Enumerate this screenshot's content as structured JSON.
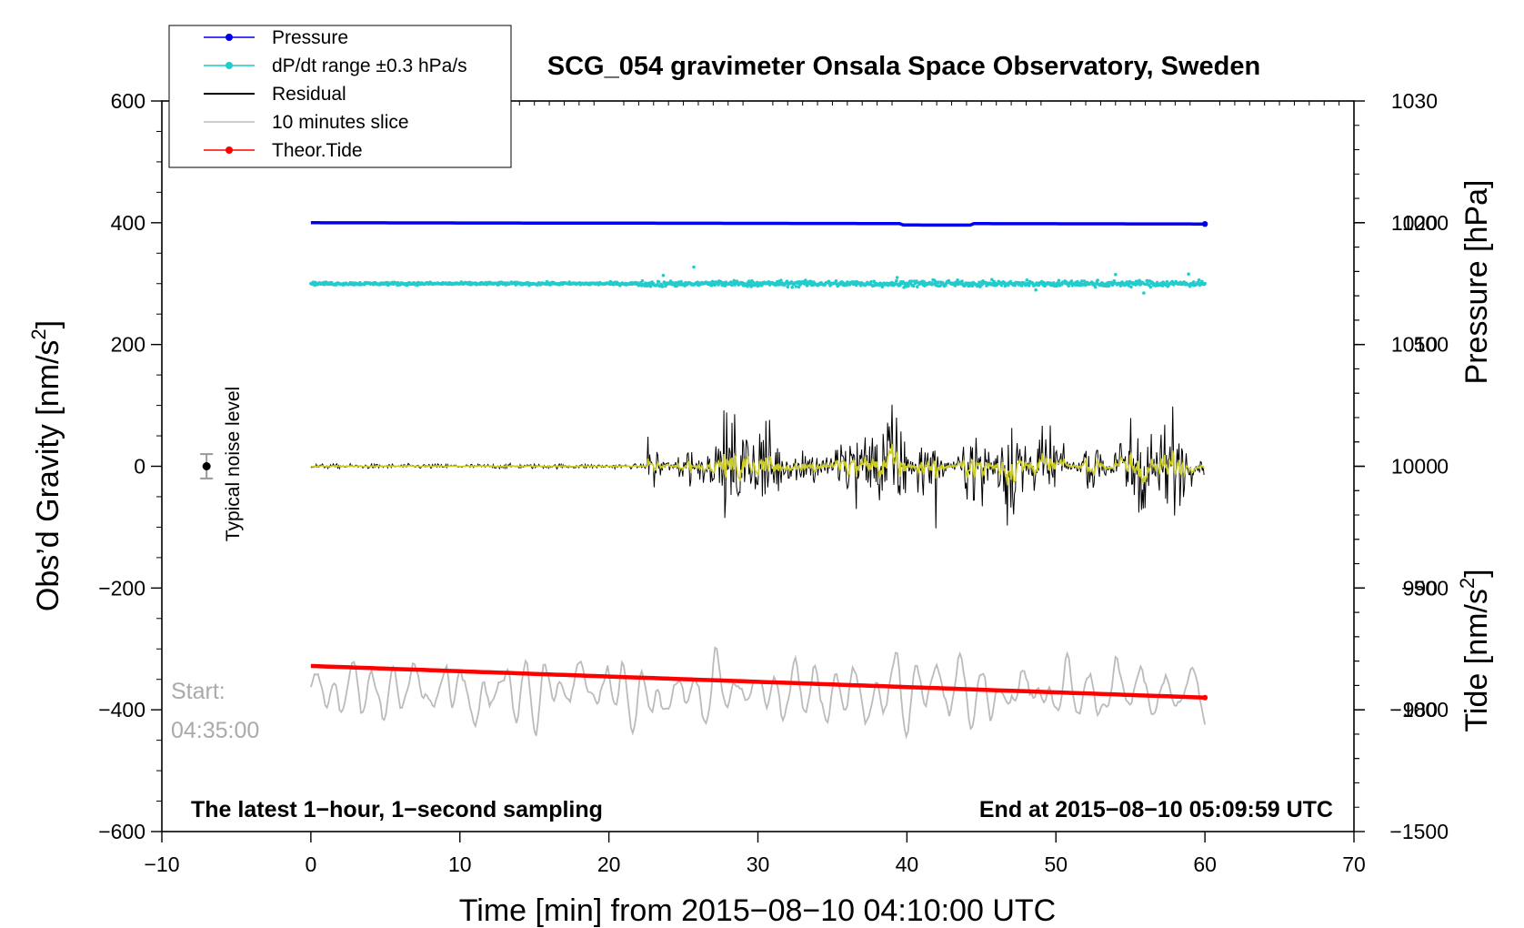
{
  "chart_data": {
    "type": "line",
    "title": "SCG_054 gravimeter Onsala Space Observatory, Sweden",
    "xlabel": "Time [min] from 2015−08−10 04:10:00 UTC",
    "ylabel_left_main": "Obs’d Gravity [nm/s",
    "ylabel_right_top_main": "Pressure [hPa]",
    "ylabel_right_bottom_main": "Tide [nm/s",
    "ylabel_sup": "2",
    "ylabel_close": "]",
    "xlim": [
      -10,
      70
    ],
    "ylim_left": [
      -600,
      600
    ],
    "ylim_pressure": [
      970,
      1030
    ],
    "ylim_tide": [
      -1500,
      1500
    ],
    "x_ticks": [
      "−10",
      "0",
      "10",
      "20",
      "30",
      "40",
      "50",
      "60",
      "70"
    ],
    "x_tick_values": [
      -10,
      0,
      10,
      20,
      30,
      40,
      50,
      60,
      70
    ],
    "y_left_ticks": [
      "600",
      "400",
      "200",
      "0",
      "−200",
      "−400",
      "−600"
    ],
    "y_left_tick_values": [
      600,
      400,
      200,
      0,
      -200,
      -400,
      -600
    ],
    "y_pressure_ticks": [
      "1030",
      "1020",
      "1010",
      "1000",
      "990",
      "980"
    ],
    "y_pressure_tick_values": [
      1030,
      1020,
      1010,
      1000,
      990,
      980
    ],
    "y_tide_ticks": [
      "1000",
      "500",
      "0",
      "−500",
      "−1000",
      "−1500"
    ],
    "y_tide_tick_values": [
      1000,
      500,
      0,
      -500,
      -1000,
      -1500
    ],
    "legend": [
      {
        "name": "Pressure",
        "color": "#0000ee",
        "marker": true
      },
      {
        "name": "dP/dt range ±0.3 hPa/s",
        "color": "#22cccc",
        "marker": true
      },
      {
        "name": "Residual",
        "color": "#000000",
        "marker": false
      },
      {
        "name": "10 minutes slice",
        "color": "#bbbbbb",
        "marker": false
      },
      {
        "name": "Theor.Tide",
        "color": "#ff0000",
        "marker": true
      }
    ],
    "series": [
      {
        "name": "Pressure",
        "axis": "pressure",
        "x_range": [
          0,
          60
        ],
        "start": 1020.0,
        "end": 1019.9,
        "color": "#0000ee"
      },
      {
        "name": "dP/dt range ±0.3 hPa/s",
        "axis": "left",
        "x_range": [
          0,
          60
        ],
        "center": 300,
        "color": "#22cccc"
      },
      {
        "name": "Residual",
        "axis": "left",
        "x_range": [
          0,
          60
        ],
        "quiet_until": 22.5,
        "quiet_amplitude": 6,
        "active_range": [
          -230,
          155
        ],
        "color": "#000000"
      },
      {
        "name": "Residual (smoothed)",
        "axis": "left",
        "x_range": [
          0,
          60
        ],
        "active_range": [
          -65,
          75
        ],
        "color": "#cccc22"
      },
      {
        "name": "10 minutes slice",
        "axis": "left",
        "x_range": [
          0,
          60
        ],
        "center": -370,
        "range": [
          -475,
          -255
        ],
        "color": "#bbbbbb"
      },
      {
        "name": "Theor.Tide",
        "axis": "left",
        "x_range": [
          0,
          60
        ],
        "start": -328,
        "end": -380,
        "color": "#ff0000"
      }
    ],
    "noise_label": "Typical noise level",
    "noise_point": {
      "x": -7,
      "y": 0,
      "err": 20
    },
    "start_label": "Start:",
    "start_time": "04:35:00",
    "bottom_left_note": "The latest 1−hour, 1−second sampling",
    "bottom_right_note": "End at 2015−08−10 05:09:59 UTC"
  }
}
